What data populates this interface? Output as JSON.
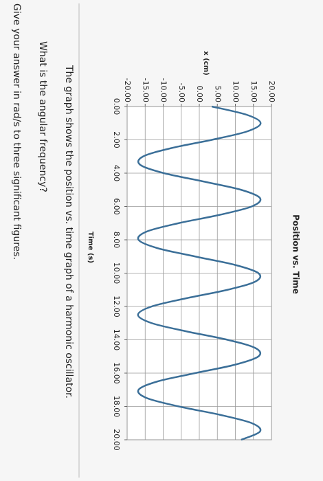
{
  "chart_data": {
    "type": "line",
    "title": "Position vs. Time",
    "x_label": "Time (s)",
    "y_label": "x (cm)",
    "x": [
      0,
      0.5,
      1,
      1.5,
      2,
      2.5,
      3,
      3.5,
      4,
      4.5,
      5,
      5.5,
      6,
      6.5,
      7,
      7.5,
      8,
      8.5,
      9,
      9.5,
      10,
      10.5,
      11,
      11.5,
      12,
      12.5,
      13,
      13.5,
      14,
      14.5,
      15,
      15.5,
      16,
      16.5,
      17,
      17.5,
      18,
      18.5,
      19,
      19.5,
      20
    ],
    "series": [
      {
        "color": "#3b6f98",
        "values": [
          3.46,
          13.19,
          17,
          13.19,
          3.46,
          -7.82,
          -15.59,
          -16.37,
          -9.8,
          1.16,
          11.6,
          16.84,
          14.52,
          5.69,
          -5.69,
          -14.52,
          -16.84,
          -11.6,
          -1.16,
          9.8,
          16.37,
          15.59,
          7.82,
          -3.46,
          -13.19,
          -17,
          -13.19,
          -3.46,
          7.82,
          15.59,
          16.37,
          9.8,
          -1.16,
          -11.6,
          -16.84,
          -14.52,
          -5.69,
          5.69,
          14.52,
          16.84,
          11.6
        ]
      }
    ],
    "xlim": [
      0,
      20
    ],
    "ylim": [
      -20,
      20
    ],
    "xticks": [
      {
        "value": 0,
        "label": "0.00"
      },
      {
        "value": 2,
        "label": "2.00"
      },
      {
        "value": 4,
        "label": "4.00"
      },
      {
        "value": 6,
        "label": "6.00"
      },
      {
        "value": 8,
        "label": "8.00"
      },
      {
        "value": 10,
        "label": "10.00"
      },
      {
        "value": 12,
        "label": "12.00"
      },
      {
        "value": 14,
        "label": "14.00"
      },
      {
        "value": 16,
        "label": "16.00"
      },
      {
        "value": 18,
        "label": "18.00"
      },
      {
        "value": 20,
        "label": "20.00"
      }
    ],
    "yticks": [
      {
        "value": 20,
        "label": "20.00"
      },
      {
        "value": 15,
        "label": "15.00"
      },
      {
        "value": 10,
        "label": "10.00"
      },
      {
        "value": 5,
        "label": "5.00"
      },
      {
        "value": 0,
        "label": "0.00"
      },
      {
        "value": -5,
        "label": "-5.00"
      },
      {
        "value": -10,
        "label": "-10.00"
      },
      {
        "value": -15,
        "label": "-15.00"
      },
      {
        "value": -20,
        "label": "-20.00"
      }
    ],
    "grid": true
  },
  "question": {
    "lines": [
      "The graph shows the position vs. time graph of a harmonic oscillator.",
      "What is the angular frequency?",
      "Give your answer in rad/s to three significant figures."
    ]
  }
}
